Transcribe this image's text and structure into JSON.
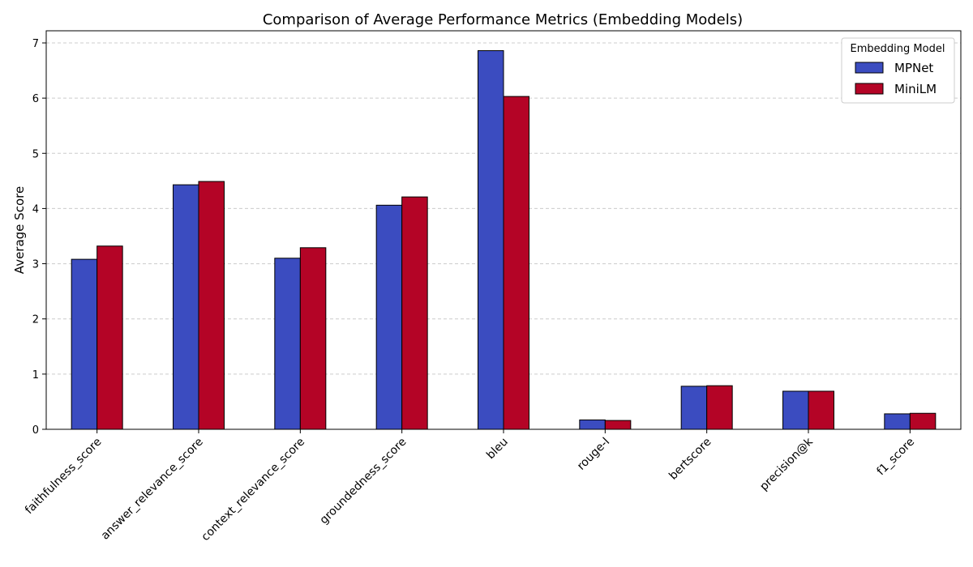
{
  "chart_data": {
    "type": "bar",
    "title": "Comparison of Average Performance Metrics (Embedding Models)",
    "xlabel": "",
    "ylabel": "Average Score",
    "ylim": [
      0,
      7.22
    ],
    "yticks": [
      0,
      1,
      2,
      3,
      4,
      5,
      6,
      7
    ],
    "grid": "horizontal dashed",
    "legend_title": "Embedding Model",
    "legend_position": "top-right",
    "categories": [
      "faithfulness_score",
      "answer_relevance_score",
      "context_relevance_score",
      "groundedness_score",
      "bleu",
      "rouge-l",
      "bertscore",
      "precision@k",
      "f1_score"
    ],
    "series": [
      {
        "name": "MPNet",
        "color": "#3b4cc0",
        "values": [
          3.08,
          4.43,
          3.1,
          4.06,
          6.86,
          0.17,
          0.78,
          0.69,
          0.28
        ]
      },
      {
        "name": "MiniLM",
        "color": "#b40426",
        "values": [
          3.32,
          4.49,
          3.29,
          4.21,
          6.03,
          0.16,
          0.79,
          0.69,
          0.29
        ]
      }
    ]
  }
}
